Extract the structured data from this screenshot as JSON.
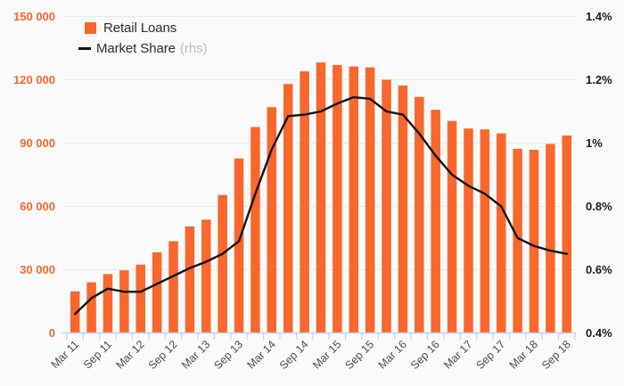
{
  "colors": {
    "background": "#fafafa",
    "bar": "#f9672c",
    "line": "#141414",
    "left_axis_text": "#f9672c",
    "right_axis_text": "#1a1a1a",
    "grid": "#e9e9e9",
    "axis_baseline": "#c9cfe9",
    "x_label_text": "#4d4d4d",
    "legend_text": "#2e2e2e",
    "legend_suffix_text": "#bcbcbc"
  },
  "legend": {
    "series1_label": "Retail Loans",
    "series2_label": "Market Share",
    "series2_suffix": "(rhs)"
  },
  "left_axis": {
    "tick_labels": [
      "0",
      "30 000",
      "60 000",
      "90 000",
      "120 000",
      "150 000"
    ],
    "tick_values": [
      0,
      30000,
      60000,
      90000,
      120000,
      150000
    ]
  },
  "right_axis": {
    "tick_labels": [
      "0.4%",
      "0.6%",
      "0.8%",
      "1%",
      "1.2%",
      "1.4%"
    ],
    "tick_values": [
      0.4,
      0.6,
      0.8,
      1.0,
      1.2,
      1.4
    ]
  },
  "chart_data": {
    "type": "bar",
    "title": "",
    "categories": [
      "Mar 11",
      "Jun 11",
      "Sep 11",
      "Dec 11",
      "Mar 12",
      "Jun 12",
      "Sep 12",
      "Dec 12",
      "Mar 13",
      "Jun 13",
      "Sep 13",
      "Dec 13",
      "Mar 14",
      "Jun 14",
      "Sep 14",
      "Dec 14",
      "Mar 15",
      "Jun 15",
      "Sep 15",
      "Dec 15",
      "Mar 16",
      "Jun 16",
      "Sep 16",
      "Dec 16",
      "Mar 17",
      "Jun 17",
      "Sep 17",
      "Dec 17",
      "Mar 18",
      "Jun 18",
      "Sep 18"
    ],
    "x_tick_labels": [
      "Mar 11",
      "Sep 11",
      "Mar 12",
      "Sep 12",
      "Mar 13",
      "Sep 13",
      "Mar 14",
      "Sep 14",
      "Mar 15",
      "Sep 15",
      "Mar 16",
      "Sep 16",
      "Mar 17",
      "Sep 17",
      "Mar 18",
      "Sep 18"
    ],
    "x_label_every": 2,
    "grid": "horizontal",
    "legend_position": "top-left",
    "series": [
      {
        "name": "Retail Loans",
        "type": "bar",
        "axis": "left",
        "values": [
          19700,
          24000,
          27900,
          29700,
          32400,
          38200,
          43500,
          50500,
          53700,
          65400,
          82700,
          97600,
          107000,
          118000,
          124000,
          128200,
          127000,
          126300,
          125900,
          120000,
          117300,
          111900,
          105800,
          100500,
          96900,
          96500,
          94600,
          87300,
          86800,
          89600,
          93600
        ]
      },
      {
        "name": "Market Share (rhs)",
        "type": "line",
        "axis": "right",
        "values": [
          0.46,
          0.51,
          0.54,
          0.53,
          0.53,
          0.555,
          0.58,
          0.605,
          0.625,
          0.65,
          0.69,
          0.84,
          0.98,
          1.085,
          1.09,
          1.1,
          1.125,
          1.145,
          1.14,
          1.1,
          1.09,
          1.03,
          0.96,
          0.9,
          0.865,
          0.84,
          0.8,
          0.7,
          0.675,
          0.66,
          0.65
        ]
      }
    ],
    "left_ylim": [
      0,
      150000
    ],
    "right_ylim": [
      0.4,
      1.4
    ]
  }
}
